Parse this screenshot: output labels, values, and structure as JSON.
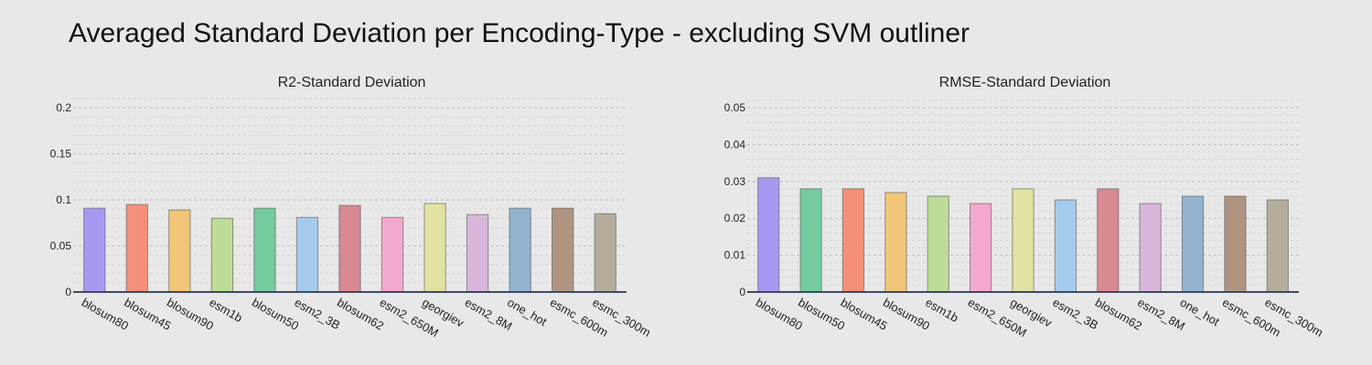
{
  "title": "Averaged Standard Deviation per Encoding-Type - excluding SVM outliner",
  "chart_data": [
    {
      "type": "bar",
      "title": "R2-Standard Deviation",
      "categories": [
        "blosum80",
        "blosum45",
        "blosum90",
        "esm1b",
        "blosum50",
        "esm2_3B",
        "blosum62",
        "esm2_650M",
        "georgiev",
        "esm2_8M",
        "one_hot",
        "esmc_600m",
        "esmc_300m"
      ],
      "values": [
        0.091,
        0.095,
        0.089,
        0.08,
        0.091,
        0.081,
        0.094,
        0.081,
        0.096,
        0.084,
        0.091,
        0.091,
        0.085
      ],
      "colors": [
        "#a998f0",
        "#f4907a",
        "#f2c678",
        "#bcdc97",
        "#74cc9f",
        "#a5cbec",
        "#d88992",
        "#f5a8cf",
        "#e2e2a2",
        "#d8b7da",
        "#93b3cf",
        "#af9581",
        "#b5ad9c"
      ],
      "yticks": [
        "0",
        "0.05",
        "0.1",
        "0.15",
        "0.2"
      ],
      "ylim": [
        0,
        0.21
      ],
      "grid": true
    },
    {
      "type": "bar",
      "title": "RMSE-Standard Deviation",
      "categories": [
        "blosum80",
        "blosum50",
        "blosum45",
        "blosum90",
        "esm1b",
        "esm2_650M",
        "georgiev",
        "esm2_3B",
        "blosum62",
        "esm2_8M",
        "one_hot",
        "esmc_600m",
        "esmc_300m"
      ],
      "values": [
        0.031,
        0.028,
        0.028,
        0.027,
        0.026,
        0.024,
        0.028,
        0.025,
        0.028,
        0.024,
        0.026,
        0.026,
        0.025
      ],
      "colors": [
        "#a998f0",
        "#74cc9f",
        "#f4907a",
        "#f2c678",
        "#bcdc97",
        "#f5a8cf",
        "#e2e2a2",
        "#a5cbec",
        "#d88992",
        "#d8b7da",
        "#93b3cf",
        "#af9581",
        "#b5ad9c"
      ],
      "yticks": [
        "0",
        "0.01",
        "0.02",
        "0.03",
        "0.04",
        "0.05"
      ],
      "ylim": [
        0,
        0.0525
      ],
      "grid": true
    }
  ]
}
